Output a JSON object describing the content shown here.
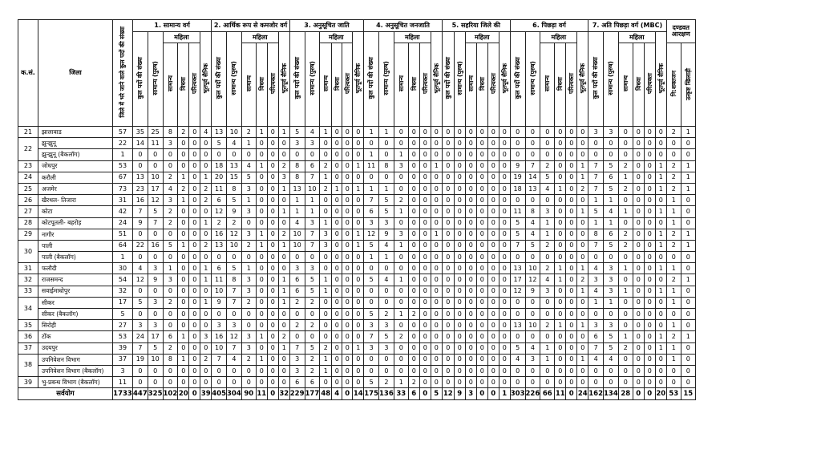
{
  "table": {
    "sl_header": "क.सं.",
    "district_header": "जिला",
    "total_header": "जिले में भरे जाने वाले कुल पदों की संख्या",
    "groups": [
      {
        "title": "1. सामान्य वर्ग",
        "cols": [
          "कुल पदों की संख्या",
          "सामान्य (पुरुष)",
          "सामान्य",
          "विधवा",
          "परित्यक्ता",
          "भूतपूर्व सैनिक"
        ]
      },
      {
        "title": "2. आर्थिक रूप से कमजोर वर्ग",
        "cols": [
          "कुल पदों की संख्या",
          "सामान्य (पुरुष)",
          "सामान्य",
          "विधवा",
          "परित्यक्ता",
          "भूतपूर्व सैनिक"
        ]
      },
      {
        "title": "3. अनुसूचित जाति",
        "cols": [
          "कुल पदों की संख्या",
          "सामान्य (पुरुष)",
          "सामान्य",
          "विधवा",
          "परित्यक्ता",
          "भूतपूर्व सैनिक"
        ]
      },
      {
        "title": "4. अनुसूचित जनजाति",
        "cols": [
          "कुल पदों की संख्या",
          "सामान्य (पुरुष)",
          "सामान्य",
          "विधवा",
          "परित्यक्ता",
          "भूतपूर्व सैनिक"
        ]
      },
      {
        "title": "5. सहरिया जिले की",
        "cols": [
          "कुल पदों की संख्या",
          "सामान्य (पुरुष)",
          "सामान्य",
          "विधवा",
          "परित्यक्ता",
          "भूतपूर्व सैनिक"
        ]
      },
      {
        "title": "6. पिछड़ा वर्ग",
        "cols": [
          "कुल पदों की संख्या",
          "सामान्य (पुरुष)",
          "सामान्य",
          "विधवा",
          "परित्यक्ता",
          "भूतपूर्व सैनिक"
        ]
      },
      {
        "title": "7. अति पिछड़ा वर्ग (MBC)",
        "cols": [
          "कुल पदों की संख्या",
          "सामान्य (पुरुष)",
          "सामान्य",
          "विधवा",
          "परित्यक्ता",
          "भूतपूर्व सैनिक"
        ]
      }
    ],
    "mahila_label": "महिला",
    "pwd_title": "दण्डवत आरक्षण",
    "pwd_cols": [
      "नि:शक्तजन",
      "उत्कृष्ट खिलाड़ी"
    ],
    "rows": [
      {
        "sl": "21",
        "district": "झालावाड",
        "vals": [
          57,
          35,
          25,
          8,
          2,
          0,
          4,
          13,
          10,
          2,
          1,
          0,
          1,
          5,
          4,
          1,
          0,
          0,
          0,
          1,
          1,
          0,
          0,
          0,
          0,
          0,
          0,
          0,
          0,
          0,
          0,
          0,
          0,
          0,
          0,
          0,
          0,
          3,
          3,
          0,
          0,
          0,
          0,
          2,
          1
        ]
      },
      {
        "sl": "22",
        "district": "झुन्झुनू",
        "vals": [
          22,
          14,
          11,
          3,
          0,
          0,
          0,
          5,
          4,
          1,
          0,
          0,
          0,
          3,
          3,
          0,
          0,
          0,
          0,
          0,
          0,
          0,
          0,
          0,
          0,
          0,
          0,
          0,
          0,
          0,
          0,
          0,
          0,
          0,
          0,
          0,
          0,
          0,
          0,
          0,
          0,
          0,
          0,
          0,
          0
        ]
      },
      {
        "sl": "",
        "district": "झुन्झुनू (बैकलॉग)",
        "vals": [
          1,
          0,
          0,
          0,
          0,
          0,
          0,
          0,
          0,
          0,
          0,
          0,
          0,
          0,
          0,
          0,
          0,
          0,
          0,
          1,
          0,
          1,
          0,
          0,
          0,
          0,
          0,
          0,
          0,
          0,
          0,
          0,
          0,
          0,
          0,
          0,
          0,
          0,
          0,
          0,
          0,
          0,
          0,
          0,
          0
        ]
      },
      {
        "sl": "23",
        "district": "जोधपुर",
        "vals": [
          53,
          0,
          0,
          0,
          0,
          0,
          0,
          18,
          13,
          4,
          1,
          0,
          2,
          8,
          6,
          2,
          0,
          0,
          1,
          11,
          8,
          3,
          0,
          0,
          1,
          0,
          0,
          0,
          0,
          0,
          0,
          9,
          7,
          2,
          0,
          0,
          1,
          7,
          5,
          2,
          0,
          0,
          1,
          2,
          1
        ]
      },
      {
        "sl": "24",
        "district": "करौली",
        "vals": [
          67,
          13,
          10,
          2,
          1,
          0,
          1,
          20,
          15,
          5,
          0,
          0,
          3,
          8,
          7,
          1,
          0,
          0,
          0,
          0,
          0,
          0,
          0,
          0,
          0,
          0,
          0,
          0,
          0,
          0,
          0,
          19,
          14,
          5,
          0,
          0,
          1,
          7,
          6,
          1,
          0,
          0,
          1,
          2,
          1
        ]
      },
      {
        "sl": "25",
        "district": "अजमेर",
        "vals": [
          73,
          23,
          17,
          4,
          2,
          0,
          2,
          11,
          8,
          3,
          0,
          0,
          1,
          13,
          10,
          2,
          1,
          0,
          1,
          1,
          1,
          0,
          0,
          0,
          0,
          0,
          0,
          0,
          0,
          0,
          0,
          18,
          13,
          4,
          1,
          0,
          2,
          7,
          5,
          2,
          0,
          0,
          1,
          2,
          1
        ]
      },
      {
        "sl": "26",
        "district": "खैरथल- तिजारा",
        "vals": [
          31,
          16,
          12,
          3,
          1,
          0,
          2,
          6,
          5,
          1,
          0,
          0,
          0,
          1,
          1,
          0,
          0,
          0,
          0,
          7,
          5,
          2,
          0,
          0,
          0,
          0,
          0,
          0,
          0,
          0,
          0,
          0,
          0,
          0,
          0,
          0,
          0,
          1,
          1,
          0,
          0,
          0,
          0,
          1,
          0
        ]
      },
      {
        "sl": "27",
        "district": "कोटा",
        "vals": [
          42,
          7,
          5,
          2,
          0,
          0,
          0,
          12,
          9,
          3,
          0,
          0,
          1,
          1,
          1,
          0,
          0,
          0,
          0,
          6,
          5,
          1,
          0,
          0,
          0,
          0,
          0,
          0,
          0,
          0,
          0,
          11,
          8,
          3,
          0,
          0,
          1,
          5,
          4,
          1,
          0,
          0,
          1,
          1,
          0
        ]
      },
      {
        "sl": "28",
        "district": "कोटपूतली- बहरोड़",
        "vals": [
          24,
          9,
          7,
          2,
          0,
          0,
          1,
          2,
          2,
          0,
          0,
          0,
          0,
          4,
          3,
          1,
          0,
          0,
          0,
          3,
          3,
          0,
          0,
          0,
          0,
          0,
          0,
          0,
          0,
          0,
          0,
          5,
          4,
          1,
          0,
          0,
          0,
          1,
          1,
          0,
          0,
          0,
          0,
          1,
          0
        ]
      },
      {
        "sl": "29",
        "district": "नागौर",
        "vals": [
          51,
          0,
          0,
          0,
          0,
          0,
          0,
          16,
          12,
          3,
          1,
          0,
          2,
          10,
          7,
          3,
          0,
          0,
          1,
          12,
          9,
          3,
          0,
          0,
          1,
          0,
          0,
          0,
          0,
          0,
          0,
          5,
          4,
          1,
          0,
          0,
          0,
          8,
          6,
          2,
          0,
          0,
          1,
          2,
          1
        ]
      },
      {
        "sl": "30",
        "district": "पाली",
        "vals": [
          64,
          22,
          16,
          5,
          1,
          0,
          2,
          13,
          10,
          2,
          1,
          0,
          1,
          10,
          7,
          3,
          0,
          0,
          1,
          5,
          4,
          1,
          0,
          0,
          0,
          0,
          0,
          0,
          0,
          0,
          0,
          7,
          5,
          2,
          0,
          0,
          0,
          7,
          5,
          2,
          0,
          0,
          1,
          2,
          1
        ]
      },
      {
        "sl": "",
        "district": "पाली (बैकलॉग)",
        "vals": [
          1,
          0,
          0,
          0,
          0,
          0,
          0,
          0,
          0,
          0,
          0,
          0,
          0,
          0,
          0,
          0,
          0,
          0,
          0,
          1,
          1,
          0,
          0,
          0,
          0,
          0,
          0,
          0,
          0,
          0,
          0,
          0,
          0,
          0,
          0,
          0,
          0,
          0,
          0,
          0,
          0,
          0,
          0,
          0,
          0
        ]
      },
      {
        "sl": "31",
        "district": "फलौदी",
        "vals": [
          30,
          4,
          3,
          1,
          0,
          0,
          1,
          6,
          5,
          1,
          0,
          0,
          0,
          3,
          3,
          0,
          0,
          0,
          0,
          0,
          0,
          0,
          0,
          0,
          0,
          0,
          0,
          0,
          0,
          0,
          0,
          13,
          10,
          2,
          1,
          0,
          1,
          4,
          3,
          1,
          0,
          0,
          1,
          1,
          0
        ]
      },
      {
        "sl": "32",
        "district": "राजसमन्द",
        "vals": [
          54,
          12,
          9,
          3,
          0,
          0,
          1,
          11,
          8,
          3,
          0,
          0,
          1,
          6,
          5,
          1,
          0,
          0,
          0,
          5,
          4,
          1,
          0,
          0,
          0,
          0,
          0,
          0,
          0,
          0,
          0,
          17,
          12,
          4,
          1,
          0,
          2,
          3,
          3,
          0,
          0,
          0,
          0,
          2,
          1
        ]
      },
      {
        "sl": "33",
        "district": "सवाईमाधोपुर",
        "vals": [
          32,
          0,
          0,
          0,
          0,
          0,
          0,
          10,
          7,
          3,
          0,
          0,
          1,
          6,
          5,
          1,
          0,
          0,
          0,
          0,
          0,
          0,
          0,
          0,
          0,
          0,
          0,
          0,
          0,
          0,
          0,
          12,
          9,
          3,
          0,
          0,
          1,
          4,
          3,
          1,
          0,
          0,
          1,
          1,
          0
        ]
      },
      {
        "sl": "34",
        "district": "सीकर",
        "vals": [
          17,
          5,
          3,
          2,
          0,
          0,
          1,
          9,
          7,
          2,
          0,
          0,
          1,
          2,
          2,
          0,
          0,
          0,
          0,
          0,
          0,
          0,
          0,
          0,
          0,
          0,
          0,
          0,
          0,
          0,
          0,
          0,
          0,
          0,
          0,
          0,
          0,
          1,
          1,
          0,
          0,
          0,
          0,
          1,
          0
        ]
      },
      {
        "sl": "",
        "district": "सीकर (बैकलॉग)",
        "vals": [
          5,
          0,
          0,
          0,
          0,
          0,
          0,
          0,
          0,
          0,
          0,
          0,
          0,
          0,
          0,
          0,
          0,
          0,
          0,
          5,
          2,
          1,
          2,
          0,
          0,
          0,
          0,
          0,
          0,
          0,
          0,
          0,
          0,
          0,
          0,
          0,
          0,
          0,
          0,
          0,
          0,
          0,
          0,
          0,
          0
        ]
      },
      {
        "sl": "35",
        "district": "सिरोही",
        "vals": [
          27,
          3,
          3,
          0,
          0,
          0,
          0,
          3,
          3,
          0,
          0,
          0,
          0,
          2,
          2,
          0,
          0,
          0,
          0,
          3,
          3,
          0,
          0,
          0,
          0,
          0,
          0,
          0,
          0,
          0,
          0,
          13,
          10,
          2,
          1,
          0,
          1,
          3,
          3,
          0,
          0,
          0,
          0,
          1,
          0
        ]
      },
      {
        "sl": "36",
        "district": "टोंक",
        "vals": [
          53,
          24,
          17,
          6,
          1,
          0,
          3,
          16,
          12,
          3,
          1,
          0,
          2,
          0,
          0,
          0,
          0,
          0,
          0,
          7,
          5,
          2,
          0,
          0,
          0,
          0,
          0,
          0,
          0,
          0,
          0,
          0,
          0,
          0,
          0,
          0,
          0,
          6,
          5,
          1,
          0,
          0,
          1,
          2,
          1
        ]
      },
      {
        "sl": "37",
        "district": "उदयपुर",
        "vals": [
          39,
          7,
          5,
          2,
          0,
          0,
          0,
          10,
          7,
          3,
          0,
          0,
          1,
          7,
          5,
          2,
          0,
          0,
          1,
          3,
          3,
          0,
          0,
          0,
          0,
          0,
          0,
          0,
          0,
          0,
          0,
          5,
          4,
          1,
          0,
          0,
          0,
          7,
          5,
          2,
          0,
          0,
          1,
          1,
          0
        ]
      },
      {
        "sl": "38",
        "district": "उपनिवेशन विभाग",
        "vals": [
          37,
          19,
          10,
          8,
          1,
          0,
          2,
          7,
          4,
          2,
          1,
          0,
          0,
          3,
          2,
          1,
          0,
          0,
          0,
          0,
          0,
          0,
          0,
          0,
          0,
          0,
          0,
          0,
          0,
          0,
          0,
          4,
          3,
          1,
          0,
          0,
          1,
          4,
          4,
          0,
          0,
          0,
          0,
          1,
          0
        ]
      },
      {
        "sl": "",
        "district": "उपनिवेशन विभाग (बैकलॉग)",
        "vals": [
          3,
          0,
          0,
          0,
          0,
          0,
          0,
          0,
          0,
          0,
          0,
          0,
          0,
          3,
          2,
          1,
          0,
          0,
          0,
          0,
          0,
          0,
          0,
          0,
          0,
          0,
          0,
          0,
          0,
          0,
          0,
          0,
          0,
          0,
          0,
          0,
          0,
          0,
          0,
          0,
          0,
          0,
          0,
          0,
          0
        ]
      },
      {
        "sl": "39",
        "district": "भु-प्रबन्ध विभाग (बैकलॉग)",
        "vals": [
          11,
          0,
          0,
          0,
          0,
          0,
          0,
          0,
          0,
          0,
          0,
          0,
          0,
          6,
          6,
          0,
          0,
          0,
          0,
          5,
          2,
          1,
          2,
          0,
          0,
          0,
          0,
          0,
          0,
          0,
          0,
          0,
          0,
          0,
          0,
          0,
          0,
          0,
          0,
          0,
          0,
          0,
          0,
          0,
          0
        ]
      }
    ],
    "total_row": {
      "label": "सर्वयोग",
      "vals": [
        1733,
        447,
        325,
        102,
        20,
        0,
        39,
        405,
        304,
        90,
        11,
        0,
        32,
        229,
        177,
        48,
        4,
        0,
        14,
        175,
        136,
        33,
        6,
        0,
        5,
        12,
        9,
        3,
        0,
        0,
        1,
        303,
        226,
        66,
        11,
        0,
        24,
        162,
        134,
        28,
        0,
        0,
        20,
        53,
        15
      ]
    }
  }
}
